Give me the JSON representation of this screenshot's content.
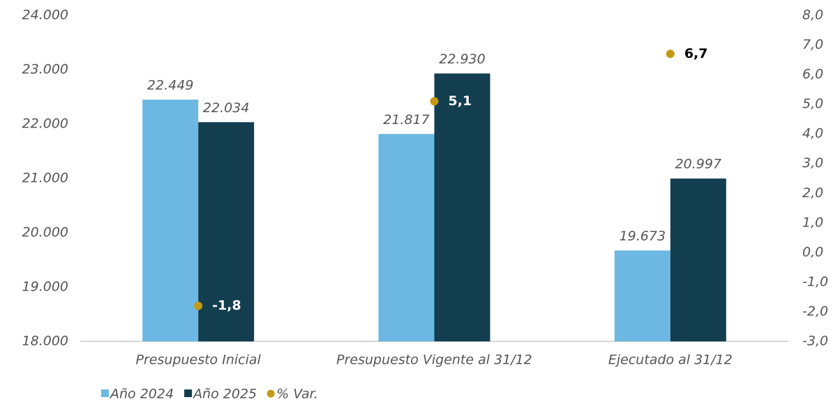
{
  "chart_data": {
    "type": "bar",
    "categories": [
      "Presupuesto Inicial",
      "Presupuesto Vigente al 31/12",
      "Ejecutado al 31/12"
    ],
    "series": [
      {
        "name": "Año 2024",
        "color": "#6cb8e3",
        "values": [
          22449,
          21817,
          19673
        ],
        "value_labels": [
          "22.449",
          "21.817",
          "19.673"
        ]
      },
      {
        "name": "Año 2025",
        "color": "#123e50",
        "values": [
          22034,
          22930,
          20997
        ],
        "value_labels": [
          "22.034",
          "22.930",
          "20.997"
        ]
      },
      {
        "name": "% Var.",
        "type": "scatter",
        "axis": "y2",
        "color": "#c49a12",
        "values": [
          -1.8,
          5.1,
          6.7
        ],
        "value_labels": [
          "-1,8",
          "5,1",
          "6,7"
        ],
        "label_colors": [
          "#ffffff",
          "#ffffff",
          "#000000"
        ]
      }
    ],
    "ylim": [
      18000,
      24000
    ],
    "yticks": [
      {
        "value": 18000,
        "label": "18.000"
      },
      {
        "value": 19000,
        "label": "19.000"
      },
      {
        "value": 20000,
        "label": "20.000"
      },
      {
        "value": 21000,
        "label": "21.000"
      },
      {
        "value": 22000,
        "label": "22.000"
      },
      {
        "value": 23000,
        "label": "23.000"
      },
      {
        "value": 24000,
        "label": "24.000"
      }
    ],
    "y2lim": [
      -3,
      8
    ],
    "y2ticks": [
      {
        "value": -3,
        "label": "-3,0"
      },
      {
        "value": -2,
        "label": "-2,0"
      },
      {
        "value": -1,
        "label": "-1,0"
      },
      {
        "value": 0,
        "label": "0,0"
      },
      {
        "value": 1,
        "label": "1,0"
      },
      {
        "value": 2,
        "label": "2,0"
      },
      {
        "value": 3,
        "label": "3,0"
      },
      {
        "value": 4,
        "label": "4,0"
      },
      {
        "value": 5,
        "label": "5,0"
      },
      {
        "value": 6,
        "label": "6,0"
      },
      {
        "value": 7,
        "label": "7,0"
      },
      {
        "value": 8,
        "label": "8,0"
      }
    ],
    "grid": false,
    "legend": "bottom-left"
  }
}
